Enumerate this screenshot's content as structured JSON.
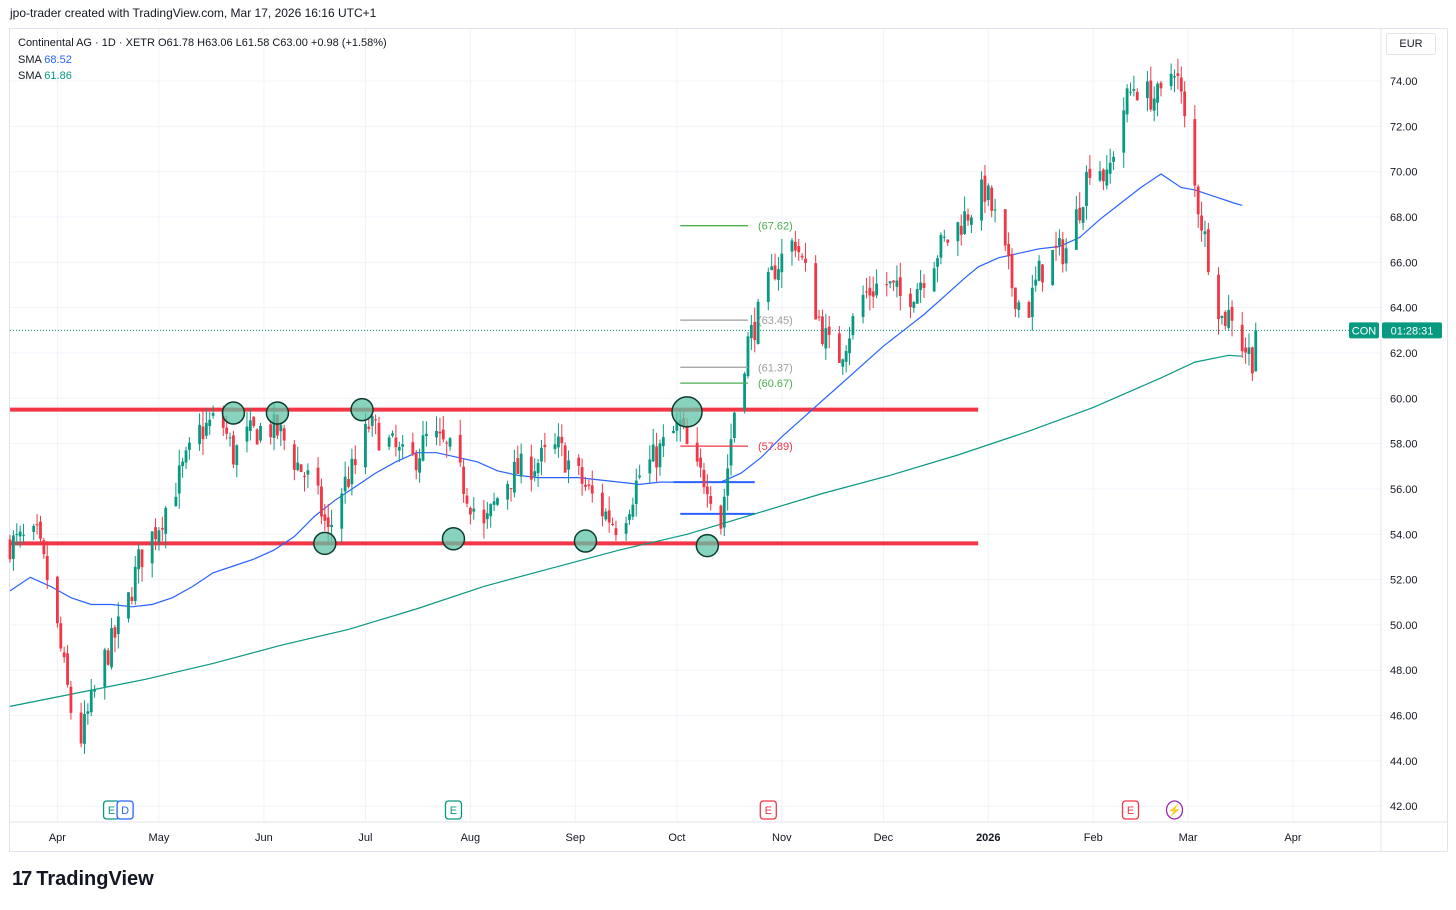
{
  "credit": "jpo-trader created with TradingView.com, Mar 17, 2026 16:16 UTC+1",
  "legend": {
    "symbol_line": "Continental AG · 1D · XETR  O61.78  H63.06  L61.58  C63.00  +0.98 (+1.58%)",
    "sma_label": "SMA",
    "sma1_value": "68.52",
    "sma2_value": "61.86"
  },
  "currency": "EUR",
  "price_tag": {
    "ticker": "CON",
    "countdown": "01:28:31",
    "price": 63.0
  },
  "footer": {
    "brand": "TradingView"
  },
  "colors": {
    "up": "#089981",
    "down": "#f23645",
    "sma_fast": "#2962ff",
    "sma_slow": "#089981",
    "support_resistance": "#f23645",
    "touch_fill": "#5fc4a8"
  },
  "chart_data": {
    "type": "candlestick",
    "title": "Continental AG · 1D · XETR",
    "ylim": [
      41.3,
      76.3
    ],
    "y_ticks": [
      "42.00",
      "44.00",
      "46.00",
      "48.00",
      "50.00",
      "52.00",
      "54.00",
      "56.00",
      "58.00",
      "60.00",
      "62.00",
      "64.00",
      "66.00",
      "68.00",
      "70.00",
      "72.00",
      "74.00"
    ],
    "x_ticks": [
      {
        "label": "Apr",
        "day": 14
      },
      {
        "label": "May",
        "day": 44
      },
      {
        "label": "Jun",
        "day": 75
      },
      {
        "label": "Jul",
        "day": 105
      },
      {
        "label": "Aug",
        "day": 136
      },
      {
        "label": "Sep",
        "day": 167
      },
      {
        "label": "Oct",
        "day": 197
      },
      {
        "label": "Nov",
        "day": 228
      },
      {
        "label": "Dec",
        "day": 258
      },
      {
        "label": "2026",
        "day": 289
      },
      {
        "label": "Feb",
        "day": 320
      },
      {
        "label": "Mar",
        "day": 348
      },
      {
        "label": "Apr",
        "day": 379
      }
    ],
    "x_range_days": [
      0,
      405
    ],
    "price_path": [
      [
        0,
        53.6
      ],
      [
        8,
        53.8
      ],
      [
        12,
        51.5
      ],
      [
        16,
        48
      ],
      [
        20,
        44.5
      ],
      [
        24,
        46.5
      ],
      [
        28,
        48.5
      ],
      [
        34,
        50.5
      ],
      [
        38,
        52.8
      ],
      [
        44,
        54.5
      ],
      [
        50,
        56.5
      ],
      [
        56,
        58.5
      ],
      [
        62,
        59.2
      ],
      [
        66,
        57.5
      ],
      [
        70,
        58.3
      ],
      [
        76,
        58.8
      ],
      [
        80,
        58.4
      ],
      [
        84,
        57.3
      ],
      [
        90,
        56
      ],
      [
        94,
        54
      ],
      [
        98,
        56
      ],
      [
        102,
        57
      ],
      [
        106,
        58.8
      ],
      [
        112,
        58
      ],
      [
        118,
        57
      ],
      [
        124,
        58.4
      ],
      [
        130,
        57.6
      ],
      [
        136,
        55.5
      ],
      [
        140,
        54.2
      ],
      [
        146,
        56.3
      ],
      [
        150,
        56.8
      ],
      [
        156,
        57.2
      ],
      [
        162,
        57.8
      ],
      [
        168,
        56.5
      ],
      [
        174,
        55.2
      ],
      [
        180,
        54.3
      ],
      [
        186,
        56.6
      ],
      [
        190,
        57.3
      ],
      [
        194,
        58.1
      ],
      [
        198,
        58.8
      ],
      [
        202,
        56.8
      ],
      [
        206,
        56.4
      ],
      [
        210,
        54.5
      ],
      [
        214,
        59.5
      ],
      [
        218,
        62.5
      ],
      [
        222,
        64
      ],
      [
        226,
        65.8
      ],
      [
        232,
        67
      ],
      [
        236,
        65
      ],
      [
        240,
        63
      ],
      [
        244,
        61.5
      ],
      [
        248,
        63
      ],
      [
        252,
        64.5
      ],
      [
        258,
        65.2
      ],
      [
        264,
        64.3
      ],
      [
        268,
        65
      ],
      [
        274,
        66.5
      ],
      [
        278,
        67.2
      ],
      [
        284,
        68.4
      ],
      [
        288,
        69.2
      ],
      [
        292,
        67.5
      ],
      [
        296,
        65
      ],
      [
        300,
        63.5
      ],
      [
        304,
        65.5
      ],
      [
        308,
        66.3
      ],
      [
        312,
        66.6
      ],
      [
        316,
        68.5
      ],
      [
        320,
        71
      ],
      [
        324,
        69.5
      ],
      [
        328,
        72.5
      ],
      [
        332,
        73.8
      ],
      [
        336,
        73.4
      ],
      [
        340,
        73.2
      ],
      [
        344,
        74.8
      ],
      [
        346,
        73.2
      ],
      [
        349,
        70
      ],
      [
        352,
        67.8
      ],
      [
        355,
        65.5
      ],
      [
        358,
        63.5
      ],
      [
        361,
        63.8
      ],
      [
        364,
        62.4
      ],
      [
        367,
        61.8
      ],
      [
        368,
        63
      ]
    ],
    "series": [
      {
        "name": "SMA",
        "value_label": "68.52",
        "points": [
          [
            0,
            51.5
          ],
          [
            6,
            52.1
          ],
          [
            12,
            51.7
          ],
          [
            18,
            51.2
          ],
          [
            24,
            50.9
          ],
          [
            30,
            50.9
          ],
          [
            36,
            50.8
          ],
          [
            42,
            50.9
          ],
          [
            48,
            51.2
          ],
          [
            54,
            51.7
          ],
          [
            60,
            52.3
          ],
          [
            66,
            52.6
          ],
          [
            72,
            52.9
          ],
          [
            78,
            53.3
          ],
          [
            84,
            53.9
          ],
          [
            90,
            54.8
          ],
          [
            96,
            55.5
          ],
          [
            102,
            56.1
          ],
          [
            108,
            56.7
          ],
          [
            114,
            57.2
          ],
          [
            120,
            57.6
          ],
          [
            126,
            57.6
          ],
          [
            132,
            57.4
          ],
          [
            138,
            57.2
          ],
          [
            144,
            56.8
          ],
          [
            150,
            56.6
          ],
          [
            156,
            56.5
          ],
          [
            162,
            56.5
          ],
          [
            168,
            56.5
          ],
          [
            174,
            56.4
          ],
          [
            180,
            56.3
          ],
          [
            186,
            56.2
          ],
          [
            192,
            56.3
          ],
          [
            198,
            56.3
          ],
          [
            204,
            56.3
          ],
          [
            210,
            56.3
          ],
          [
            216,
            56.7
          ],
          [
            222,
            57.4
          ],
          [
            228,
            58.3
          ],
          [
            234,
            59.1
          ],
          [
            240,
            59.9
          ],
          [
            246,
            60.7
          ],
          [
            252,
            61.5
          ],
          [
            258,
            62.3
          ],
          [
            264,
            63
          ],
          [
            270,
            63.7
          ],
          [
            276,
            64.5
          ],
          [
            282,
            65.3
          ],
          [
            286,
            65.8
          ],
          [
            292,
            66.2
          ],
          [
            298,
            66.4
          ],
          [
            304,
            66.6
          ],
          [
            310,
            66.7
          ],
          [
            316,
            67.1
          ],
          [
            322,
            67.9
          ],
          [
            328,
            68.6
          ],
          [
            334,
            69.3
          ],
          [
            340,
            69.9
          ],
          [
            346,
            69.3
          ],
          [
            350,
            69.2
          ],
          [
            356,
            68.9
          ],
          [
            362,
            68.6
          ],
          [
            364,
            68.52
          ]
        ]
      },
      {
        "name": "SMA",
        "value_label": "61.86",
        "points": [
          [
            0,
            46.4
          ],
          [
            20,
            47
          ],
          [
            40,
            47.6
          ],
          [
            60,
            48.3
          ],
          [
            80,
            49.1
          ],
          [
            100,
            49.8
          ],
          [
            120,
            50.7
          ],
          [
            140,
            51.7
          ],
          [
            160,
            52.5
          ],
          [
            180,
            53.3
          ],
          [
            200,
            54
          ],
          [
            220,
            54.9
          ],
          [
            240,
            55.8
          ],
          [
            260,
            56.6
          ],
          [
            280,
            57.5
          ],
          [
            300,
            58.5
          ],
          [
            320,
            59.6
          ],
          [
            340,
            60.9
          ],
          [
            350,
            61.6
          ],
          [
            360,
            61.9
          ],
          [
            364,
            61.86
          ]
        ]
      }
    ],
    "horizontal_levels": [
      {
        "name": "resistance",
        "price": 59.5,
        "from_day": 0,
        "to_day": 286
      },
      {
        "name": "support",
        "price": 53.6,
        "from_day": 0,
        "to_day": 286
      }
    ],
    "touch_points": [
      [
        66,
        59.35
      ],
      [
        79,
        59.35
      ],
      [
        104,
        59.5
      ],
      [
        93,
        53.6
      ],
      [
        131,
        53.8
      ],
      [
        170,
        53.7
      ],
      [
        200,
        59.4
      ],
      [
        206,
        53.5
      ]
    ],
    "fib_levels": [
      {
        "label": "(67.62)",
        "price": 67.62,
        "from_day": 198,
        "to_day": 218,
        "color": "#4caf50"
      },
      {
        "label": "(63.45)",
        "price": 63.45,
        "from_day": 198,
        "to_day": 218,
        "color": "#9e9e9e"
      },
      {
        "label": "(61.37)",
        "price": 61.37,
        "from_day": 198,
        "to_day": 218,
        "color": "#9e9e9e"
      },
      {
        "label": "(60.67)",
        "price": 60.67,
        "from_day": 198,
        "to_day": 218,
        "color": "#4caf50"
      },
      {
        "label": "(57.89)",
        "price": 57.89,
        "from_day": 198,
        "to_day": 218,
        "color": "#f23645"
      }
    ],
    "blue_marks": [
      {
        "price": 56.3,
        "from_day": 196,
        "to_day": 220
      },
      {
        "price": 54.9,
        "from_day": 198,
        "to_day": 220
      }
    ],
    "events": [
      {
        "label": "E",
        "day": 30,
        "color": "#089981"
      },
      {
        "label": "D",
        "day": 34,
        "color": "#2962ff"
      },
      {
        "label": "E",
        "day": 131,
        "color": "#089981"
      },
      {
        "label": "E",
        "day": 224,
        "color": "#f23645"
      },
      {
        "label": "E",
        "day": 331,
        "color": "#f23645"
      },
      {
        "label": "⚡",
        "day": 344,
        "color": "#9c27b0"
      }
    ],
    "last_price": 63.0
  }
}
